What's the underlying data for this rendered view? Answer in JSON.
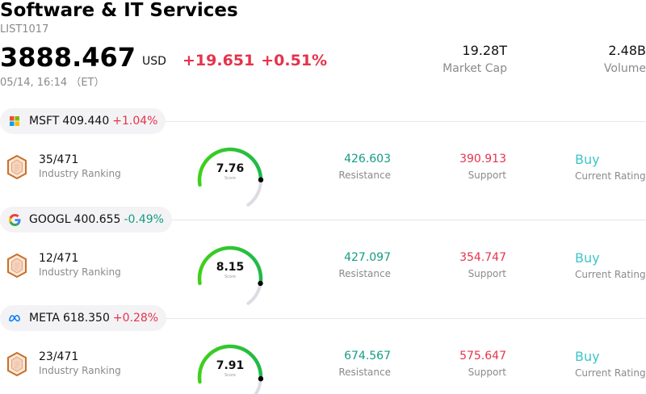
{
  "header": {
    "title": "Software & IT Services",
    "list_id": "LIST1017",
    "price": "3888.467",
    "currency": "USD",
    "change": "+19.651",
    "change_pct": "+0.51%",
    "timestamp": "05/14, 16:14 （ET）",
    "market_cap_value": "19.28T",
    "market_cap_label": "Market Cap",
    "volume_value": "2.48B",
    "volume_label": "Volume"
  },
  "colors": {
    "up": "#e5334b",
    "down": "#149c84",
    "rating": "#3ec5c8",
    "gauge_fill": "#2ecc1f",
    "gauge_track": "#dcdde3"
  },
  "stocks": [
    {
      "ticker": "MSFT",
      "price": "409.440",
      "change_pct": "+1.04%",
      "direction": "up",
      "logo_icon": "microsoft-logo-icon",
      "ranking": "35/471",
      "ranking_label": "Industry Ranking",
      "score": "7.76",
      "score_value": 7.76,
      "score_label": "Score",
      "resistance": "426.603",
      "resistance_label": "Resistance",
      "support": "390.913",
      "support_label": "Support",
      "rating": "Buy",
      "rating_label": "Current Rating"
    },
    {
      "ticker": "GOOGL",
      "price": "400.655",
      "change_pct": "-0.49%",
      "direction": "down",
      "logo_icon": "google-logo-icon",
      "ranking": "12/471",
      "ranking_label": "Industry Ranking",
      "score": "8.15",
      "score_value": 8.15,
      "score_label": "Score",
      "resistance": "427.097",
      "resistance_label": "Resistance",
      "support": "354.747",
      "support_label": "Support",
      "rating": "Buy",
      "rating_label": "Current Rating"
    },
    {
      "ticker": "META",
      "price": "618.350",
      "change_pct": "+0.28%",
      "direction": "up",
      "logo_icon": "meta-logo-icon",
      "ranking": "23/471",
      "ranking_label": "Industry Ranking",
      "score": "7.91",
      "score_value": 7.91,
      "score_label": "Score",
      "resistance": "674.567",
      "resistance_label": "Resistance",
      "support": "575.647",
      "support_label": "Support",
      "rating": "Buy",
      "rating_label": "Current Rating"
    }
  ]
}
